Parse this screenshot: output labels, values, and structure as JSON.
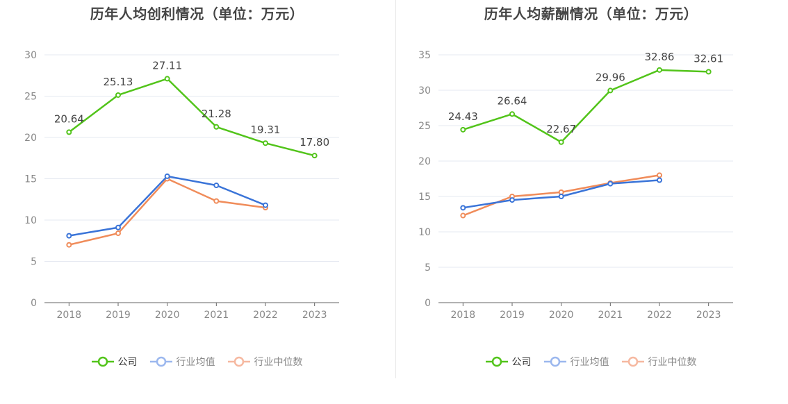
{
  "colors": {
    "company": "#52c41a",
    "industry_avg": "#3a74d8",
    "industry_median": "#f08c5a",
    "legend_avg_dim": "#9bb7ee",
    "legend_median_dim": "#f6b8a0",
    "grid": "#e4e8f0",
    "axis": "#666666",
    "tick_text": "#888888",
    "label_text": "#444444"
  },
  "legend": {
    "company": "公司",
    "industry_avg": "行业均值",
    "industry_median": "行业中位数"
  },
  "chart_data": [
    {
      "type": "line",
      "title": "历年人均创利情况（单位：万元）",
      "categories": [
        "2018",
        "2019",
        "2020",
        "2021",
        "2022",
        "2023"
      ],
      "ylim": [
        0,
        30
      ],
      "yticks": [
        0,
        5,
        10,
        15,
        20,
        25,
        30
      ],
      "grid": true,
      "legend_position": "bottom-center",
      "series": [
        {
          "name": "公司",
          "key": "company",
          "values": [
            20.64,
            25.13,
            27.11,
            21.28,
            19.31,
            17.8
          ],
          "labels": [
            "20.64",
            "25.13",
            "27.11",
            "21.28",
            "19.31",
            "17.80"
          ]
        },
        {
          "name": "行业均值",
          "key": "industry_avg",
          "values": [
            8.1,
            9.1,
            15.3,
            14.2,
            11.8,
            null
          ]
        },
        {
          "name": "行业中位数",
          "key": "industry_median",
          "values": [
            7.0,
            8.4,
            15.0,
            12.3,
            11.5,
            null
          ]
        }
      ]
    },
    {
      "type": "line",
      "title": "历年人均薪酬情况（单位：万元）",
      "categories": [
        "2018",
        "2019",
        "2020",
        "2021",
        "2022",
        "2023"
      ],
      "ylim": [
        0,
        35
      ],
      "yticks": [
        0,
        5,
        10,
        15,
        20,
        25,
        30,
        35
      ],
      "grid": true,
      "legend_position": "bottom-center",
      "series": [
        {
          "name": "公司",
          "key": "company",
          "values": [
            24.43,
            26.64,
            22.67,
            29.96,
            32.86,
            32.61
          ],
          "labels": [
            "24.43",
            "26.64",
            "22.67",
            "29.96",
            "32.86",
            "32.61"
          ]
        },
        {
          "name": "行业均值",
          "key": "industry_avg",
          "values": [
            13.4,
            14.5,
            15.0,
            16.8,
            17.3,
            null
          ]
        },
        {
          "name": "行业中位数",
          "key": "industry_median",
          "values": [
            12.3,
            15.0,
            15.6,
            16.9,
            18.0,
            null
          ]
        }
      ]
    }
  ]
}
